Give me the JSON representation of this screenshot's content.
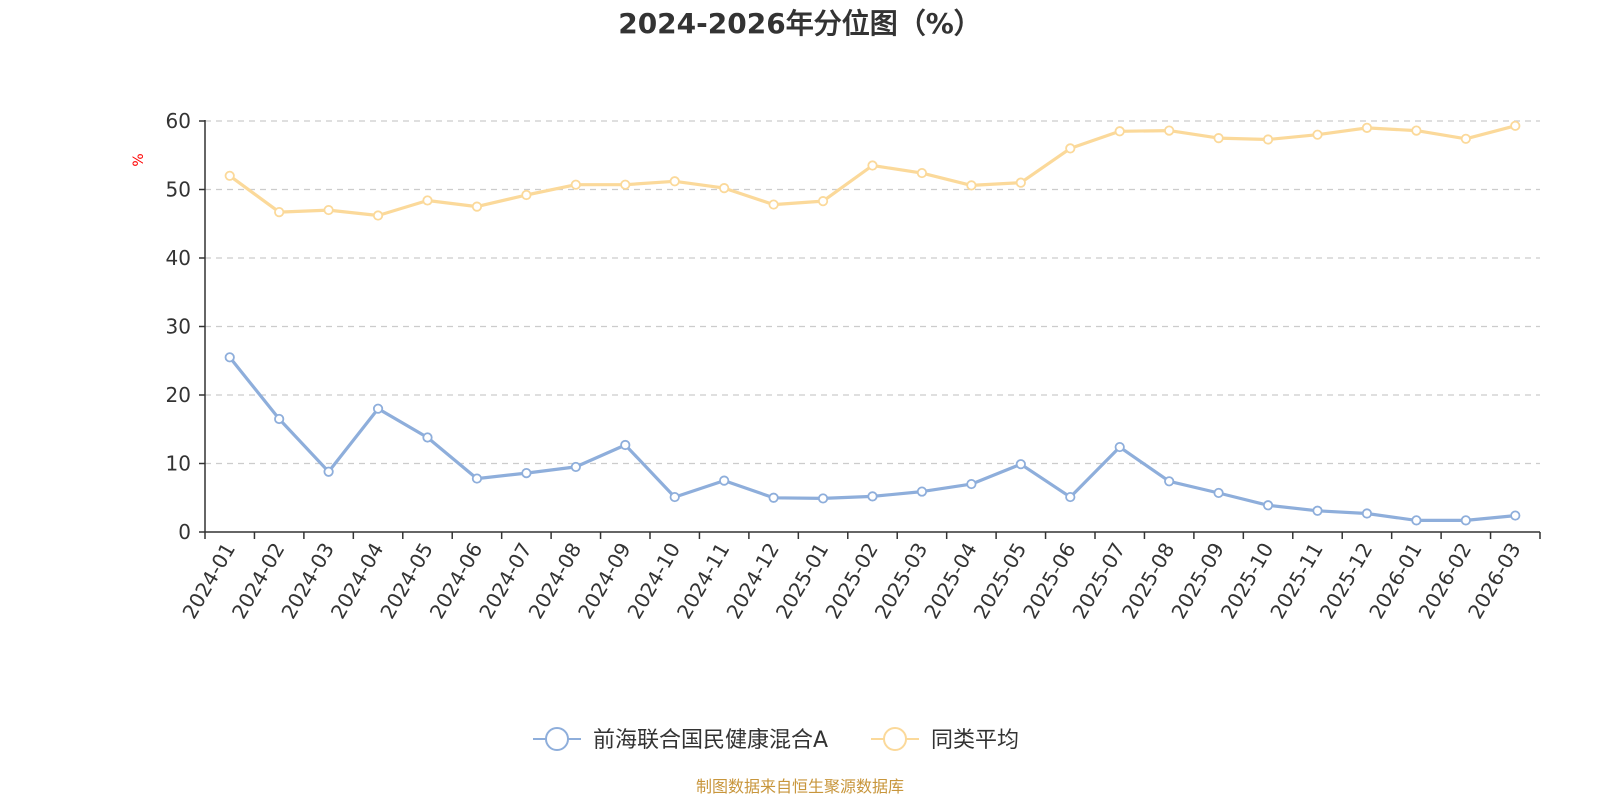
{
  "chart_data": {
    "type": "line",
    "title": "2024-2026年分位图（%）",
    "ylabel": "%",
    "xlabel": "",
    "ylim": [
      0,
      60
    ],
    "yticks": [
      0,
      10,
      20,
      30,
      40,
      50,
      60
    ],
    "grid": true,
    "legend_position": "bottom",
    "categories": [
      "2024-01",
      "2024-02",
      "2024-03",
      "2024-04",
      "2024-05",
      "2024-06",
      "2024-07",
      "2024-08",
      "2024-09",
      "2024-10",
      "2024-11",
      "2024-12",
      "2025-01",
      "2025-02",
      "2025-03",
      "2025-04",
      "2025-05",
      "2025-06",
      "2025-07",
      "2025-08",
      "2025-09",
      "2025-10",
      "2025-11",
      "2025-12",
      "2026-01",
      "2026-02",
      "2026-03"
    ],
    "series": [
      {
        "name": "前海联合国民健康混合A",
        "color": "#8eaedb",
        "values": [
          25.5,
          16.5,
          8.8,
          18.0,
          13.8,
          7.8,
          8.6,
          9.5,
          12.7,
          5.1,
          7.5,
          5.0,
          4.9,
          5.2,
          5.9,
          7.0,
          9.9,
          5.1,
          12.4,
          7.4,
          5.7,
          3.9,
          3.1,
          2.7,
          1.7,
          1.7,
          2.4
        ]
      },
      {
        "name": "同类平均",
        "color": "#fbd99a",
        "values": [
          52.0,
          46.7,
          47.0,
          46.2,
          48.4,
          47.5,
          49.2,
          50.7,
          50.7,
          51.2,
          50.2,
          47.8,
          48.3,
          53.5,
          52.4,
          50.6,
          51.0,
          56.0,
          58.5,
          58.6,
          57.5,
          57.3,
          58.0,
          59.0,
          58.6,
          57.4,
          59.3
        ]
      }
    ]
  },
  "source_text": "制图数据来自恒生聚源数据库"
}
